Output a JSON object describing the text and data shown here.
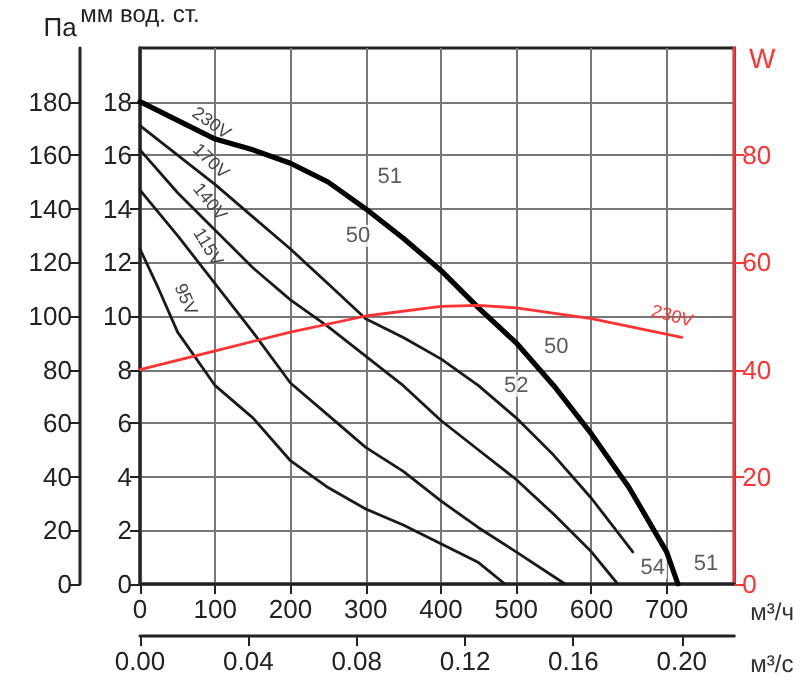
{
  "chart_data": {
    "type": "line",
    "ylabel": "мм вод. ст.",
    "y2label": "W",
    "y3label": "Па",
    "xlabel": "м³/ч",
    "x2label": "м³/с",
    "xlim": [
      0,
      790
    ],
    "xticks": [
      0,
      100,
      200,
      300,
      400,
      500,
      600,
      700
    ],
    "x2lim": [
      0,
      0.2194
    ],
    "x2ticks": [
      {
        "value": 0,
        "label": "0.00"
      },
      {
        "value": 0.04,
        "label": "0.04"
      },
      {
        "value": 0.08,
        "label": "0.08"
      },
      {
        "value": 0.12,
        "label": "0.12"
      },
      {
        "value": 0.16,
        "label": "0.16"
      },
      {
        "value": 0.2,
        "label": "0.20"
      }
    ],
    "ylim": [
      0,
      20
    ],
    "yticks": [
      0,
      2,
      4,
      6,
      8,
      10,
      12,
      14,
      16,
      18
    ],
    "y2lim": [
      0,
      100
    ],
    "y2ticks": [
      0,
      20,
      40,
      60,
      80
    ],
    "y3lim": [
      0,
      200
    ],
    "y3ticks": [
      0,
      20,
      40,
      60,
      80,
      100,
      120,
      140,
      160,
      180
    ],
    "grid": true,
    "legend": false,
    "marker": "none",
    "line_style": "solid",
    "series": [
      {
        "name": "230V",
        "color": "#000000",
        "x": [
          0,
          50,
          100,
          150,
          200,
          250,
          300,
          350,
          400,
          450,
          500,
          550,
          600,
          650,
          700,
          715
        ],
        "values": [
          18,
          17.3,
          16.6,
          16.2,
          15.7,
          15.0,
          14.0,
          12.9,
          11.7,
          10.3,
          9.0,
          7.4,
          5.6,
          3.6,
          1.2,
          0
        ]
      },
      {
        "name": "170V",
        "color": "#1a1a1a",
        "x": [
          0,
          50,
          100,
          150,
          200,
          250,
          300,
          350,
          400,
          450,
          500,
          550,
          600,
          655
        ],
        "values": [
          17.1,
          16.0,
          14.9,
          13.7,
          12.5,
          11.2,
          9.9,
          9.2,
          8.4,
          7.4,
          6.2,
          4.8,
          3.2,
          1.2
        ]
      },
      {
        "name": "140V",
        "color": "#1a1a1a",
        "x": [
          0,
          50,
          100,
          150,
          200,
          250,
          300,
          350,
          400,
          450,
          500,
          550,
          600,
          635
        ],
        "values": [
          16.2,
          14.6,
          13.2,
          11.8,
          10.6,
          9.6,
          8.5,
          7.4,
          6.1,
          5.0,
          3.9,
          2.6,
          1.2,
          0
        ]
      },
      {
        "name": "115V",
        "color": "#1a1a1a",
        "x": [
          0,
          50,
          100,
          150,
          200,
          250,
          300,
          350,
          400,
          450,
          500,
          565
        ],
        "values": [
          14.7,
          13.0,
          11.2,
          9.4,
          7.5,
          6.3,
          5.1,
          4.2,
          3.1,
          2.1,
          1.2,
          0
        ]
      },
      {
        "name": "95V",
        "color": "#1a1a1a",
        "x": [
          0,
          25,
          50,
          100,
          150,
          200,
          250,
          300,
          350,
          400,
          450,
          485
        ],
        "values": [
          12.5,
          11.0,
          9.4,
          7.4,
          6.2,
          4.6,
          3.6,
          2.8,
          2.2,
          1.5,
          0.8,
          0
        ]
      },
      {
        "name": "230V",
        "color": "#ff3333",
        "axis": "y2",
        "x": [
          0,
          100,
          200,
          300,
          400,
          450,
          500,
          600,
          720
        ],
        "values": [
          40,
          43.5,
          47,
          50,
          51.8,
          52,
          51.5,
          49.5,
          46
        ]
      }
    ],
    "annotations": [
      {
        "text": "51",
        "x": 300,
        "y": 14.0
      },
      {
        "text": "50",
        "x": 250,
        "y": 11.2
      },
      {
        "text": "50",
        "x": 500,
        "y": 9.0
      },
      {
        "text": "52",
        "x": 500,
        "y": 6.2
      },
      {
        "text": "54",
        "x": 655,
        "y": 1.2
      },
      {
        "text": "51",
        "x": 715,
        "y": 0
      }
    ]
  }
}
